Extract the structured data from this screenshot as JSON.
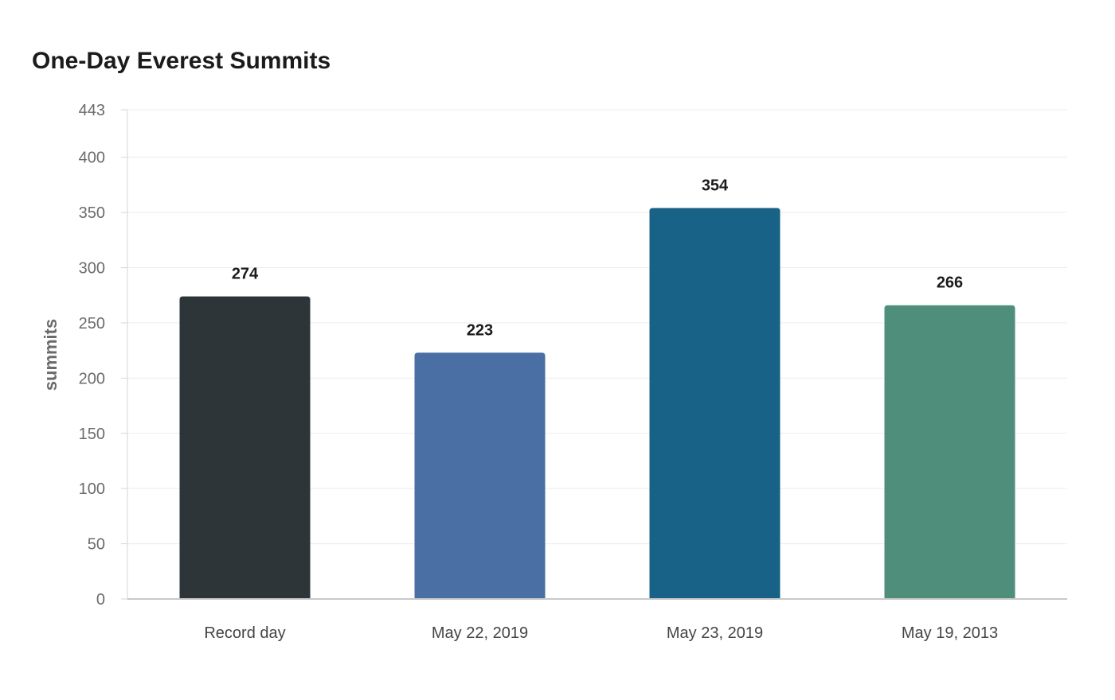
{
  "chart_data": {
    "type": "bar",
    "title": "One-Day Everest Summits",
    "xlabel": "",
    "ylabel": "summits",
    "categories": [
      "Record day",
      "May 22, 2019",
      "May 23, 2019",
      "May 19, 2013"
    ],
    "values": [
      274,
      223,
      354,
      266
    ],
    "colors": [
      "#2e3538",
      "#4a6fa5",
      "#186187",
      "#4e8e7b"
    ],
    "ylim": [
      0,
      443
    ],
    "yticks": [
      0,
      50,
      100,
      150,
      200,
      250,
      300,
      350,
      400,
      443
    ],
    "grid": true,
    "legend": "none"
  }
}
